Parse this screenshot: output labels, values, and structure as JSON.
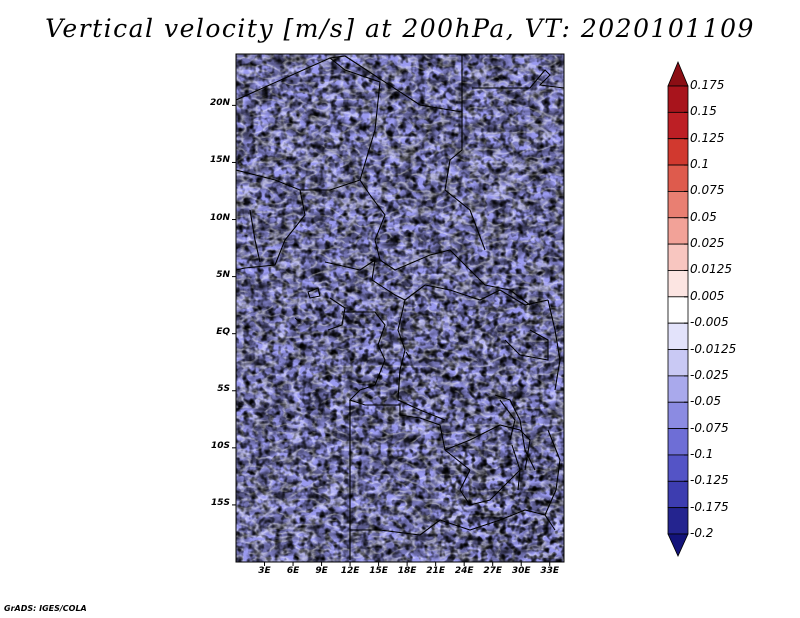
{
  "title": "Vertical velocity [m/s] at 200hPa, VT: 2020101109",
  "credit": "GrADS: IGES/COLA",
  "map": {
    "lon_labels": [
      "3E",
      "6E",
      "9E",
      "12E",
      "15E",
      "18E",
      "21E",
      "24E",
      "27E",
      "30E",
      "33E"
    ],
    "lat_labels": [
      "20N",
      "15N",
      "10N",
      "5N",
      "EQ",
      "5S",
      "10S",
      "15S"
    ],
    "lon_values": [
      3,
      6,
      9,
      12,
      15,
      18,
      21,
      24,
      27,
      30,
      33
    ],
    "lat_values": [
      20,
      15,
      10,
      5,
      0,
      -5,
      -10,
      -15
    ],
    "lon_range": [
      0,
      34.5
    ],
    "lat_range": [
      -20,
      24.5
    ]
  },
  "colorbar": {
    "labels": [
      "0.175",
      "0.15",
      "0.125",
      "0.1",
      "0.075",
      "0.05",
      "0.025",
      "0.0125",
      "0.005",
      "-0.005",
      "-0.0125",
      "-0.025",
      "-0.05",
      "-0.075",
      "-0.1",
      "-0.125",
      "-0.175",
      "-0.2"
    ],
    "colors": [
      "#8b0e14",
      "#a8141c",
      "#bd1f25",
      "#d1392f",
      "#de5b4d",
      "#e97f72",
      "#f2a298",
      "#f8c6c0",
      "#fce5e2",
      "#ffffff",
      "#e3e3fb",
      "#c9c9f4",
      "#a9a9ec",
      "#8b8be2",
      "#6e6ed6",
      "#5454c6",
      "#3d3db0",
      "#24248f",
      "#13137a"
    ]
  },
  "colors": {
    "positive": "#d23a3a",
    "negative": "#6060e0",
    "border": "#000000"
  }
}
